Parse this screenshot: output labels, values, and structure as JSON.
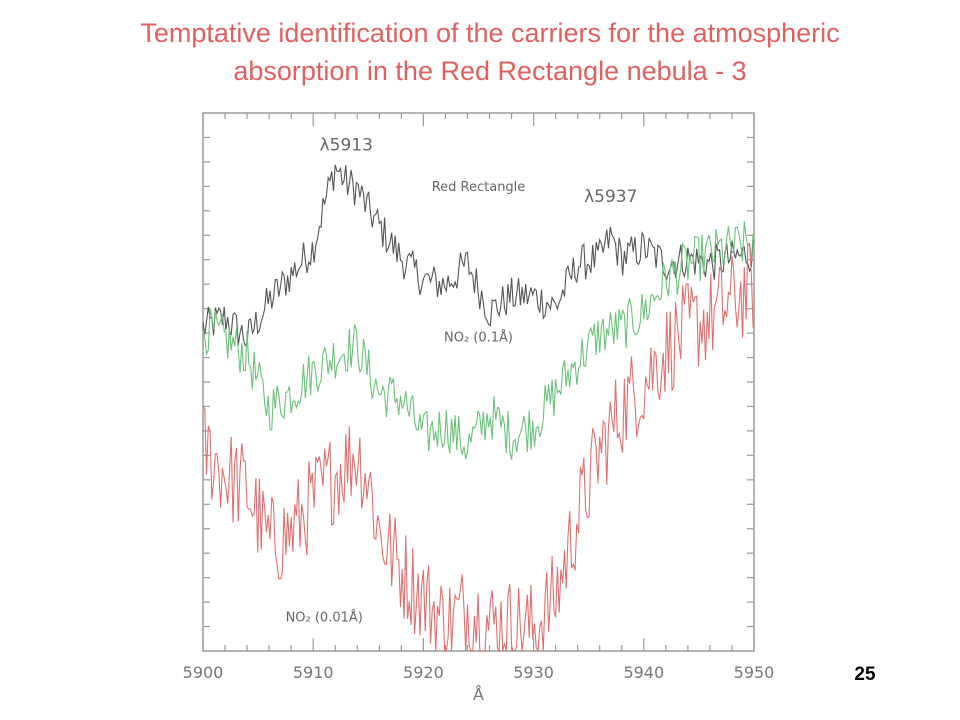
{
  "slide": {
    "title_line1": "Temptative identification of the  carriers for the atmospheric",
    "title_line2": "absorption in the Red Rectangle nebula  - 3",
    "page_number": "25"
  },
  "chart_data": {
    "type": "line",
    "xlabel": "Å",
    "ylabel": "",
    "xlim": [
      5900,
      5950
    ],
    "x_ticks": [
      "5900",
      "5910",
      "5920",
      "5930",
      "5940",
      "5950"
    ],
    "grid": false,
    "annotations": [
      {
        "text": "λ5913",
        "x": 5913,
        "y": 0.93
      },
      {
        "text": "λ5937",
        "x": 5937,
        "y": 0.835
      },
      {
        "text": "Red Rectangle",
        "x": 5925,
        "y": 0.855
      },
      {
        "text": "NO₂ (0.1Å)",
        "x": 5925,
        "y": 0.575
      },
      {
        "text": "NO₂ (0.01Å)",
        "x": 5911,
        "y": 0.055
      }
    ],
    "series": [
      {
        "name": "Red Rectangle",
        "color": "#555555",
        "x": [
          5900,
          5902,
          5904,
          5906,
          5908,
          5910,
          5911,
          5912,
          5913,
          5914,
          5915,
          5916,
          5918,
          5920,
          5922,
          5924,
          5926,
          5928,
          5930,
          5932,
          5934,
          5936,
          5937,
          5938,
          5940,
          5942,
          5944,
          5946,
          5948,
          5950
        ],
        "y": [
          0.6,
          0.62,
          0.58,
          0.65,
          0.7,
          0.75,
          0.83,
          0.9,
          0.87,
          0.86,
          0.82,
          0.79,
          0.73,
          0.69,
          0.68,
          0.72,
          0.63,
          0.66,
          0.66,
          0.64,
          0.72,
          0.73,
          0.77,
          0.73,
          0.75,
          0.72,
          0.73,
          0.72,
          0.73,
          0.74
        ]
      },
      {
        "name": "NO₂ (0.1Å)",
        "color": "#6cc27a",
        "x": [
          5900,
          5902,
          5904,
          5906,
          5908,
          5910,
          5912,
          5914,
          5915,
          5916,
          5918,
          5920,
          5922,
          5924,
          5926,
          5928,
          5930,
          5932,
          5934,
          5936,
          5938,
          5940,
          5942,
          5944,
          5946,
          5948,
          5950
        ],
        "y": [
          0.6,
          0.58,
          0.55,
          0.45,
          0.48,
          0.52,
          0.55,
          0.57,
          0.52,
          0.48,
          0.47,
          0.4,
          0.42,
          0.38,
          0.44,
          0.4,
          0.42,
          0.48,
          0.54,
          0.59,
          0.6,
          0.63,
          0.69,
          0.72,
          0.74,
          0.75,
          0.76
        ]
      },
      {
        "name": "NO₂ (0.01Å)",
        "color": "#e07070",
        "x": [
          5900,
          5902,
          5904,
          5906,
          5908,
          5910,
          5912,
          5914,
          5915,
          5916,
          5918,
          5920,
          5922,
          5924,
          5926,
          5928,
          5930,
          5932,
          5934,
          5936,
          5938,
          5940,
          5942,
          5944,
          5946,
          5948,
          5950
        ],
        "y": [
          0.38,
          0.33,
          0.3,
          0.2,
          0.22,
          0.28,
          0.33,
          0.37,
          0.32,
          0.22,
          0.15,
          0.1,
          0.05,
          0.08,
          0.05,
          0.05,
          0.04,
          0.1,
          0.25,
          0.37,
          0.45,
          0.5,
          0.56,
          0.6,
          0.62,
          0.65,
          0.68
        ]
      }
    ]
  }
}
